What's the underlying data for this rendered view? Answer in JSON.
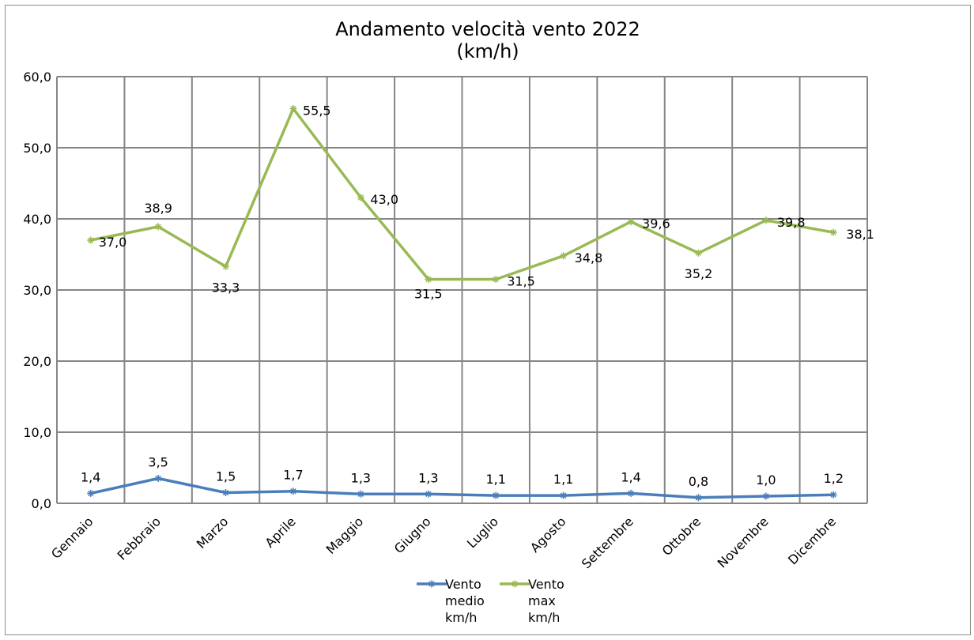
{
  "chart_data": {
    "type": "line",
    "title": "Andamento velocità vento 2022",
    "subtitle": "(km/h)",
    "categories": [
      "Gennaio",
      "Febbraio",
      "Marzo",
      "Aprile",
      "Maggio",
      "Giugno",
      "Luglio",
      "Agosto",
      "Settembre",
      "Ottobre",
      "Novembre",
      "Dicembre"
    ],
    "ylim": [
      0,
      60
    ],
    "yticks": [
      "0,0",
      "10,0",
      "20,0",
      "30,0",
      "40,0",
      "50,0",
      "60,0"
    ],
    "grid": true,
    "legend_position": "bottom",
    "series": [
      {
        "name": "Vento medio km/h",
        "legend_lines": [
          "Vento",
          "medio",
          "km/h"
        ],
        "color": "#4a7ebb",
        "values": [
          1.4,
          3.5,
          1.5,
          1.7,
          1.3,
          1.3,
          1.1,
          1.1,
          1.4,
          0.8,
          1.0,
          1.2
        ],
        "labels": [
          "1,4",
          "3,5",
          "1,5",
          "1,7",
          "1,3",
          "1,3",
          "1,1",
          "1,1",
          "1,4",
          "0,8",
          "1,0",
          "1,2"
        ]
      },
      {
        "name": "Vento max km/h",
        "legend_lines": [
          "Vento",
          "max",
          "km/h"
        ],
        "color": "#98b954",
        "values": [
          37.0,
          38.9,
          33.3,
          55.5,
          43.0,
          31.5,
          31.5,
          34.8,
          39.6,
          35.2,
          39.8,
          38.1
        ],
        "labels": [
          "37,0",
          "38,9",
          "33,3",
          "55,5",
          "43,0",
          "31,5",
          "31,5",
          "34,8",
          "39,6",
          "35,2",
          "39,8",
          "38,1"
        ]
      }
    ]
  }
}
